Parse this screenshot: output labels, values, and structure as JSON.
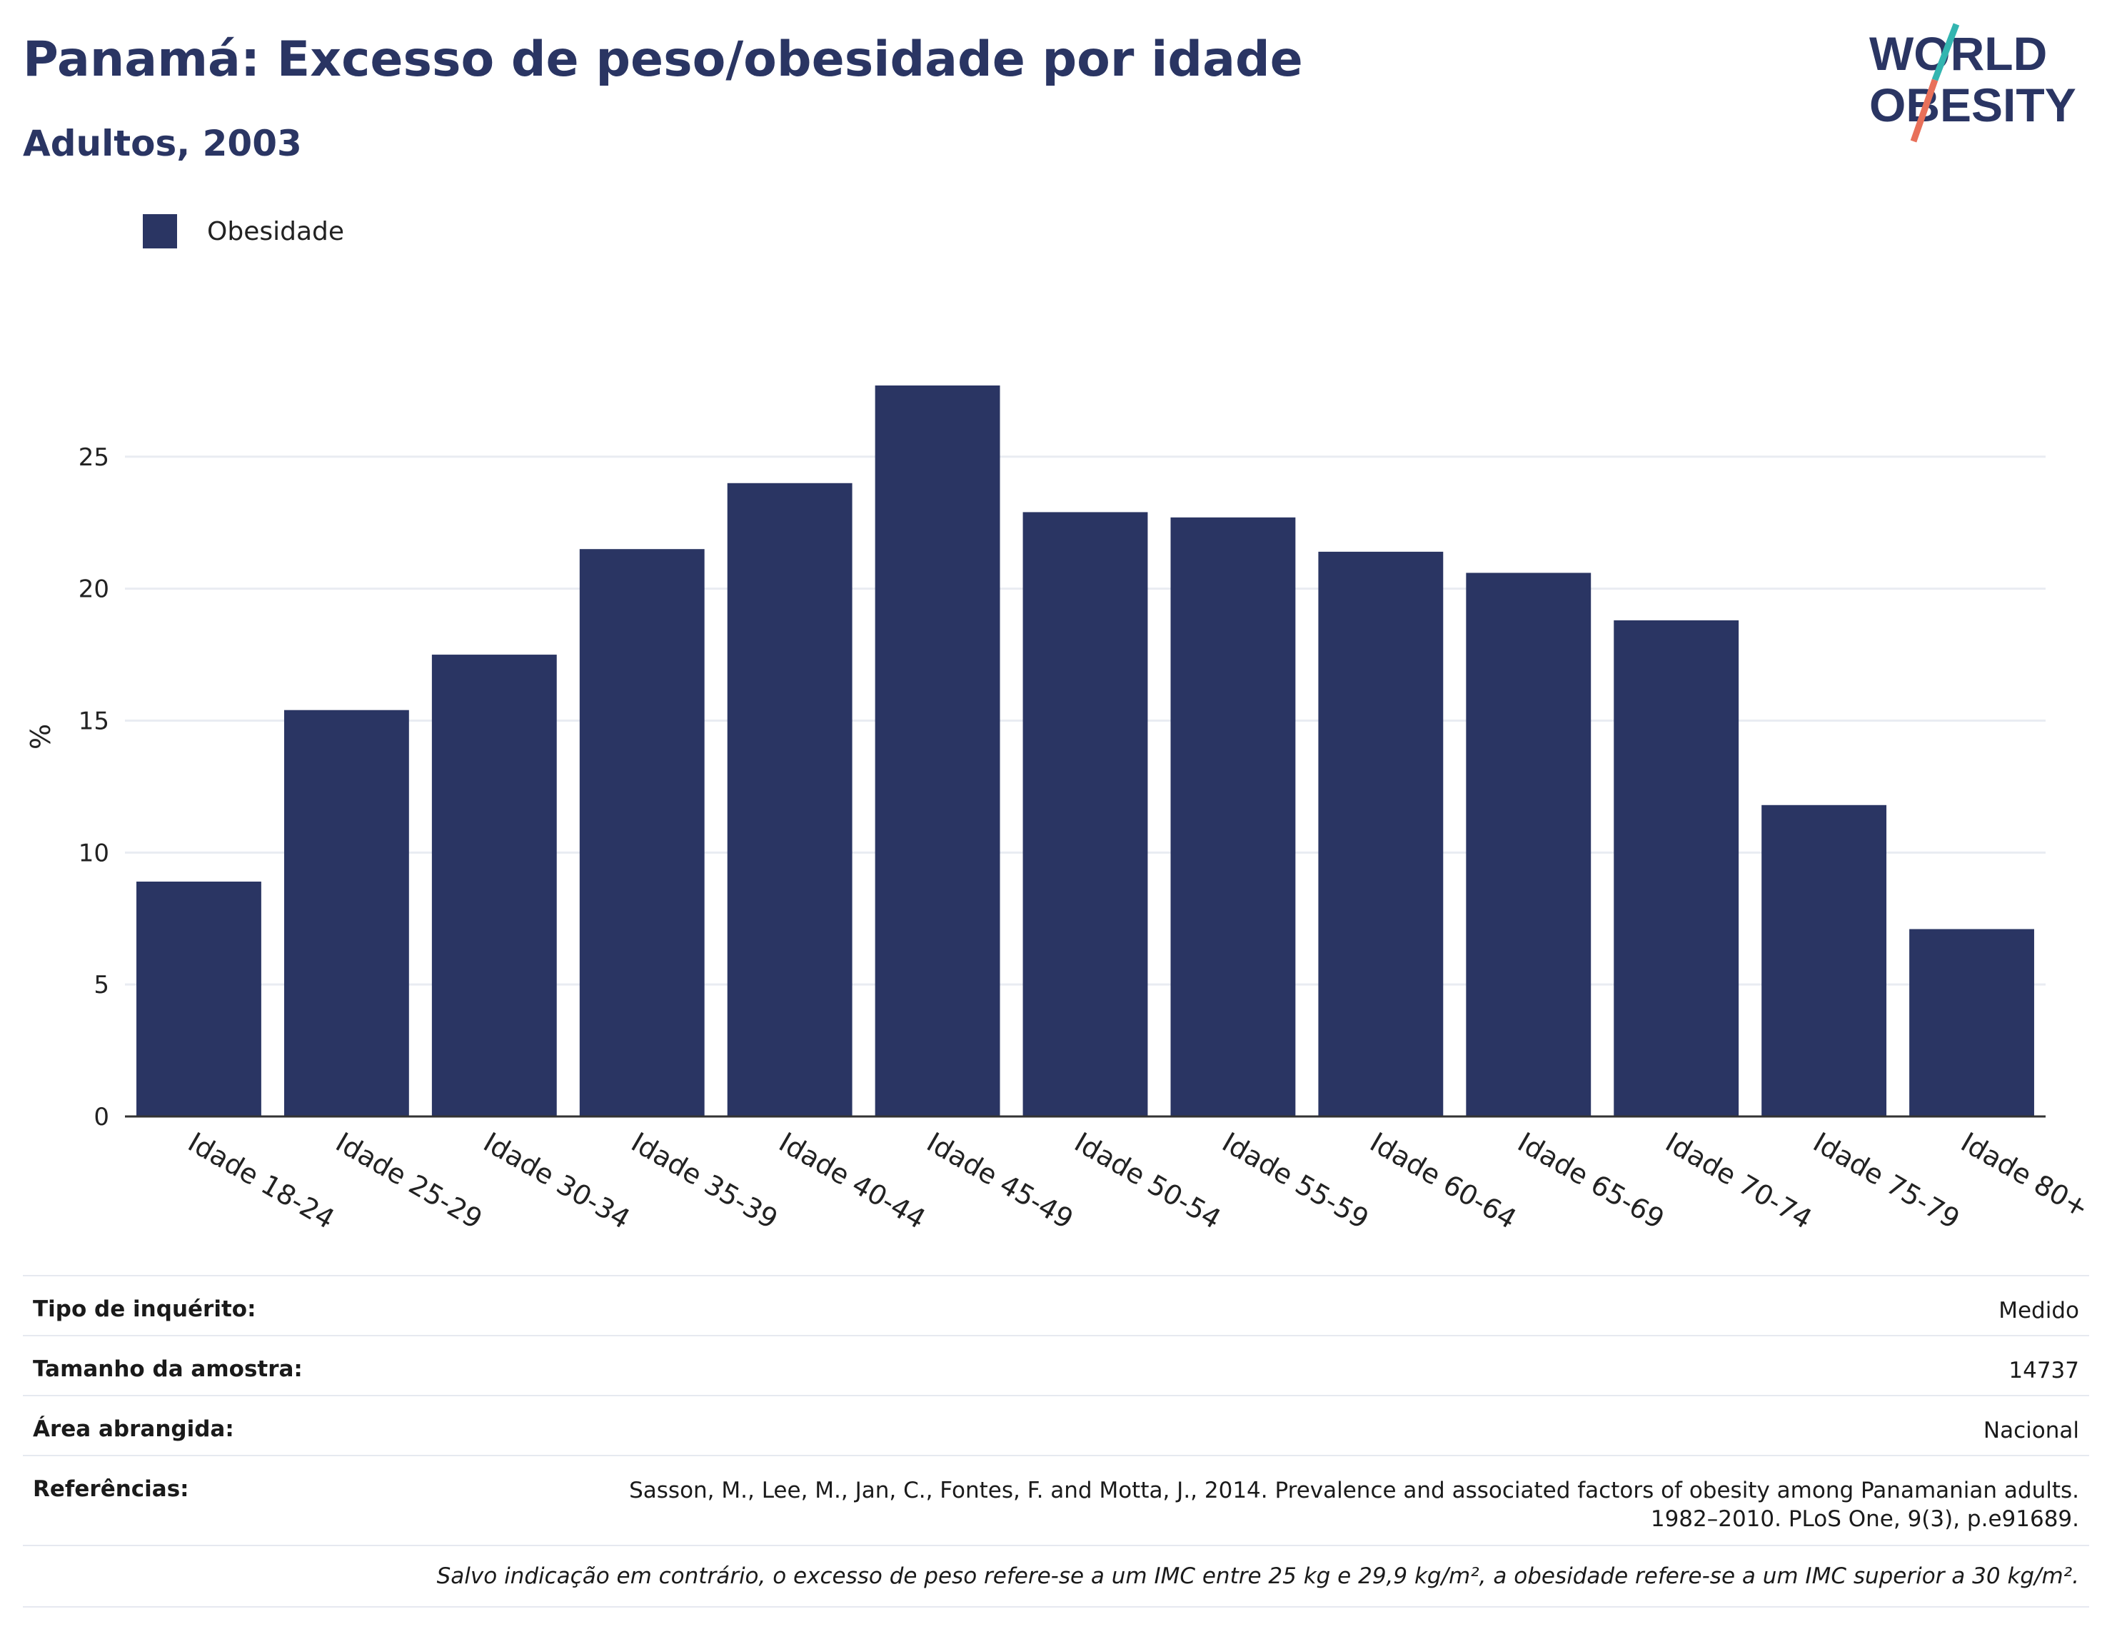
{
  "title": "Panamá: Excesso de peso/obesidade por idade",
  "subtitle": "Adultos, 2003",
  "logo": {
    "line1": "WORLD",
    "line2": "OBESITY",
    "colors": [
      "#2a3563",
      "#33b5b0",
      "#e8705a"
    ]
  },
  "colors": {
    "bar": "#2a3563",
    "grid": "#e9ecf2",
    "axis": "#333333"
  },
  "chart_data": {
    "type": "bar",
    "ylabel": "%",
    "ylim": [
      0,
      30
    ],
    "yticks": [
      0,
      5,
      10,
      15,
      20,
      25
    ],
    "grid": true,
    "legend_placement": "top-left",
    "categories": [
      "Idade 18-24",
      "Idade 25-29",
      "Idade 30-34",
      "Idade 35-39",
      "Idade 40-44",
      "Idade 45-49",
      "Idade 50-54",
      "Idade 55-59",
      "Idade 60-64",
      "Idade 65-69",
      "Idade 70-74",
      "Idade 75-79",
      "Idade 80+"
    ],
    "series": [
      {
        "name": "Obesidade",
        "color": "#2a3563",
        "values": [
          8.9,
          15.4,
          17.5,
          21.5,
          24.0,
          27.7,
          22.9,
          22.7,
          21.4,
          20.6,
          18.8,
          11.8,
          7.1
        ]
      }
    ]
  },
  "info": {
    "rows": [
      {
        "key": "Tipo de inquérito:",
        "value": "Medido"
      },
      {
        "key": "Tamanho da amostra:",
        "value": "14737"
      },
      {
        "key": "Área abrangida:",
        "value": "Nacional"
      },
      {
        "key": "Referências:",
        "value_line1": "Sasson, M., Lee, M., Jan, C., Fontes, F. and Motta, J., 2014. Prevalence and associated factors of obesity among Panamanian adults.",
        "value_line2": "1982–2010. PLoS One, 9(3), p.e91689."
      }
    ],
    "note": "Salvo indicação em contrário, o excesso de peso refere-se a um IMC entre 25 kg e 29,9 kg/m², a obesidade refere-se a um IMC superior a 30 kg/m²."
  }
}
